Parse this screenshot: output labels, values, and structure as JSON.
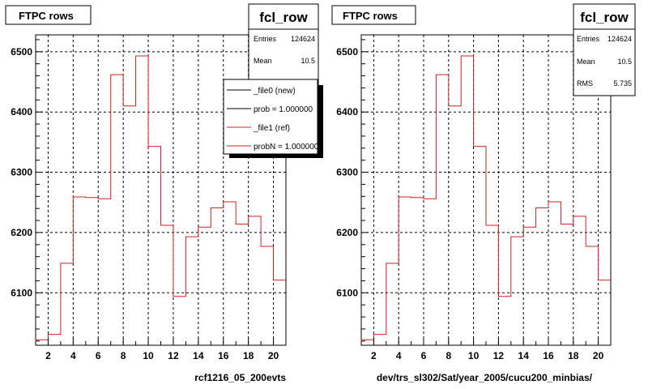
{
  "chart_data": [
    {
      "type": "histogram",
      "title": "FTPC rows",
      "xlabel": "rcf1216_05_200evts",
      "ylabel": "",
      "xlim": [
        1,
        21
      ],
      "ylim": [
        6013,
        6528
      ],
      "grid": true,
      "x_ticks": [
        2,
        4,
        6,
        8,
        10,
        12,
        14,
        16,
        18,
        20
      ],
      "y_ticks": [
        6100,
        6200,
        6300,
        6400,
        6500
      ],
      "bin_edges": [
        1,
        2,
        3,
        4,
        5,
        6,
        7,
        8,
        9,
        10,
        11,
        12,
        13,
        14,
        15,
        16,
        17,
        18,
        19,
        20,
        21
      ],
      "values": [
        6022,
        6031,
        6149,
        6259,
        6258,
        6256,
        6462,
        6410,
        6493,
        6343,
        6212,
        6094,
        6193,
        6209,
        6241,
        6251,
        6214,
        6227,
        6177,
        6121
      ],
      "stats": {
        "name": "fcl_row",
        "entries_label": "Entries",
        "entries": "124624",
        "mean_label": "Mean",
        "mean": "10.5"
      },
      "legend": {
        "placement": "top-right",
        "entries": [
          {
            "label": "_file0 (new)",
            "color": "#000000"
          },
          {
            "label": "prob = 1.000000",
            "color": "#000000"
          },
          {
            "label": "_file1 (ref)",
            "color": "#d42020"
          },
          {
            "label": "probN = 1.000000",
            "color": "#d42020"
          }
        ]
      }
    },
    {
      "type": "histogram",
      "title": "FTPC rows",
      "xlabel": "dev/trs_sl302/Sat/year_2005/cucu200_minbias/",
      "ylabel": "",
      "xlim": [
        1,
        21
      ],
      "ylim": [
        6013,
        6528
      ],
      "grid": true,
      "x_ticks": [
        2,
        4,
        6,
        8,
        10,
        12,
        14,
        16,
        18,
        20
      ],
      "y_ticks": [
        6100,
        6200,
        6300,
        6400,
        6500
      ],
      "bin_edges": [
        1,
        2,
        3,
        4,
        5,
        6,
        7,
        8,
        9,
        10,
        11,
        12,
        13,
        14,
        15,
        16,
        17,
        18,
        19,
        20,
        21
      ],
      "values": [
        6022,
        6031,
        6149,
        6259,
        6258,
        6256,
        6462,
        6410,
        6493,
        6343,
        6212,
        6094,
        6193,
        6209,
        6241,
        6251,
        6214,
        6227,
        6177,
        6121
      ],
      "stats": {
        "name": "fcl_row",
        "entries_label": "Entries",
        "entries": "124624",
        "mean_label": "Mean",
        "mean": "10.5",
        "rms_label": "RMS",
        "rms": "5.735"
      }
    }
  ],
  "colors": {
    "line": "#d42020",
    "axis": "#000000",
    "grid": "#000000"
  }
}
